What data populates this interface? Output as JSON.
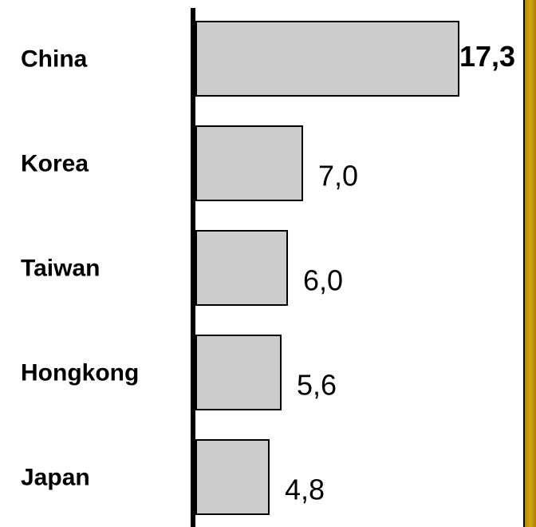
{
  "chart_data": {
    "type": "bar",
    "orientation": "horizontal",
    "categories": [
      "China",
      "Korea",
      "Taiwan",
      "Hongkong",
      "Japan"
    ],
    "values": [
      17.3,
      7.0,
      6.0,
      5.6,
      4.8
    ],
    "value_labels": [
      "17,3",
      "7,0",
      "6,0",
      "5,6",
      "4,8"
    ],
    "bar_color": "#cccccc",
    "grid": false,
    "legend": "none"
  },
  "colors": {
    "bar_fill": "#cccccc",
    "bar_stroke": "#000000",
    "axis": "#000000",
    "frame_border": "#c99a0c"
  }
}
